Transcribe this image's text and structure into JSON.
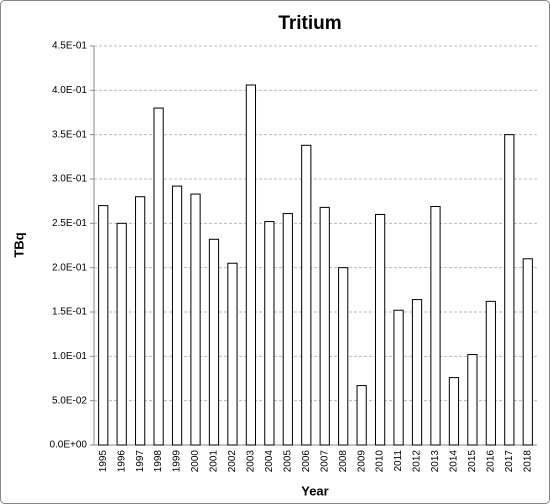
{
  "chart_data": {
    "type": "bar",
    "title": "Tritium",
    "x_label": "Year",
    "y_label": "TBq",
    "categories": [
      "1995",
      "1996",
      "1997",
      "1998",
      "1999",
      "2000",
      "2001",
      "2002",
      "2003",
      "2004",
      "2005",
      "2006",
      "2007",
      "2008",
      "2009",
      "2010",
      "2011",
      "2012",
      "2013",
      "2014",
      "2015",
      "2016",
      "2017",
      "2018"
    ],
    "values": [
      0.27,
      0.25,
      0.28,
      0.38,
      0.292,
      0.283,
      0.232,
      0.205,
      0.406,
      0.252,
      0.261,
      0.338,
      0.268,
      0.2,
      0.067,
      0.26,
      0.152,
      0.164,
      0.269,
      0.076,
      0.102,
      0.162,
      0.35,
      0.21
    ],
    "color": "#ffffff",
    "ylim": [
      0,
      0.45
    ],
    "yticks": [
      {
        "value": 0,
        "label": "0.0E+00"
      },
      {
        "value": 0.05,
        "label": "5.0E-02"
      },
      {
        "value": 0.1,
        "label": "1.0E-01"
      },
      {
        "value": 0.15,
        "label": "1.5E-01"
      },
      {
        "value": 0.2,
        "label": "2.0E-01"
      },
      {
        "value": 0.25,
        "label": "2.5E-01"
      },
      {
        "value": 0.3,
        "label": "3.0E-01"
      },
      {
        "value": 0.35,
        "label": "3.5E-01"
      },
      {
        "value": 0.4,
        "label": "4.0E-01"
      },
      {
        "value": 0.45,
        "label": "4.5E-01"
      }
    ],
    "grid": true
  }
}
